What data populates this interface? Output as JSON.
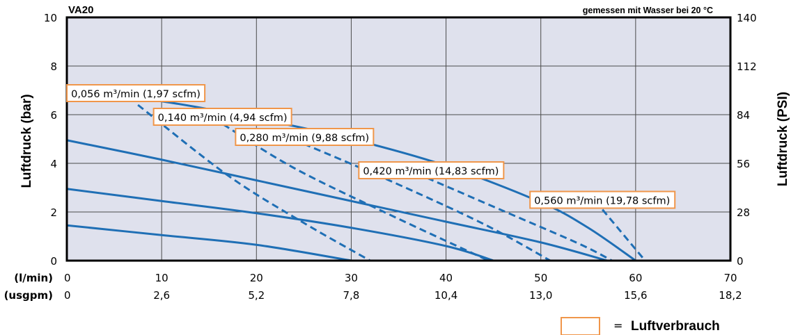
{
  "chart_data": {
    "type": "line",
    "title": "VA20",
    "subtitle": "gemessen mit Wasser bei 20 °C",
    "ylabel": "Luftdruck (bar)",
    "ylabel_right": "Luftdruck (PSI)",
    "xlabel_lmin": "(l/min)",
    "xlabel_usgpm": "(usgpm)",
    "xlim": [
      0,
      70
    ],
    "ylim": [
      0,
      10
    ],
    "ylim_right": [
      0,
      140
    ],
    "x_ticks": [
      "0",
      "10",
      "20",
      "30",
      "40",
      "50",
      "60",
      "70"
    ],
    "x_ticks_usgpm": [
      "0",
      "2,6",
      "5,2",
      "7,8",
      "10,4",
      "13,0",
      "15,6",
      "18,2"
    ],
    "y_ticks": [
      "0",
      "2",
      "4",
      "6",
      "8",
      "10"
    ],
    "y_ticks_right": [
      "0",
      "28",
      "56",
      "84",
      "112",
      "140"
    ],
    "grid": true,
    "colors": {
      "plot_bg": "#dfe1ed",
      "line": "#1f6fb5",
      "label_border": "#f0964a"
    },
    "pressure_curves": [
      {
        "x": [
          0,
          10,
          20,
          30,
          40,
          50,
          55,
          60
        ],
        "y": [
          7.0,
          6.55,
          5.85,
          5.0,
          3.9,
          2.4,
          1.35,
          0.0
        ]
      },
      {
        "x": [
          0,
          10,
          20,
          30,
          40,
          50,
          57
        ],
        "y": [
          4.95,
          4.15,
          3.3,
          2.45,
          1.6,
          0.75,
          0.0
        ]
      },
      {
        "x": [
          0,
          10,
          20,
          30,
          40,
          45
        ],
        "y": [
          2.95,
          2.45,
          1.95,
          1.35,
          0.6,
          0.0
        ]
      },
      {
        "x": [
          0,
          10,
          20,
          30
        ],
        "y": [
          1.45,
          1.05,
          0.65,
          0.0
        ]
      }
    ],
    "air_consumption_curves": [
      {
        "label": "0,056 m³/min (1,97 scfm)",
        "x": [
          7.5,
          17,
          25,
          32
        ],
        "y": [
          6.4,
          3.5,
          1.55,
          0.0
        ]
      },
      {
        "label": "0,140 m³/min (4,94 scfm)",
        "x": [
          16.5,
          24,
          34,
          44.5
        ],
        "y": [
          5.6,
          3.8,
          1.9,
          0.0
        ]
      },
      {
        "label": "0,280 m³/min (9,88 scfm)",
        "x": [
          25,
          34,
          44,
          51
        ],
        "y": [
          4.8,
          3.3,
          1.5,
          0.0
        ]
      },
      {
        "label": "0,420 m³/min (14,83 scfm)",
        "x": [
          38,
          46,
          54,
          57.5
        ],
        "y": [
          3.4,
          2.05,
          0.7,
          0.0
        ]
      },
      {
        "label": "0,560 m³/min (19,78 scfm)",
        "x": [
          56.5,
          61
        ],
        "y": [
          2.1,
          0.0
        ]
      }
    ],
    "legend": {
      "symbol": "box",
      "separator": "=",
      "text": "Luftverbrauch"
    }
  }
}
